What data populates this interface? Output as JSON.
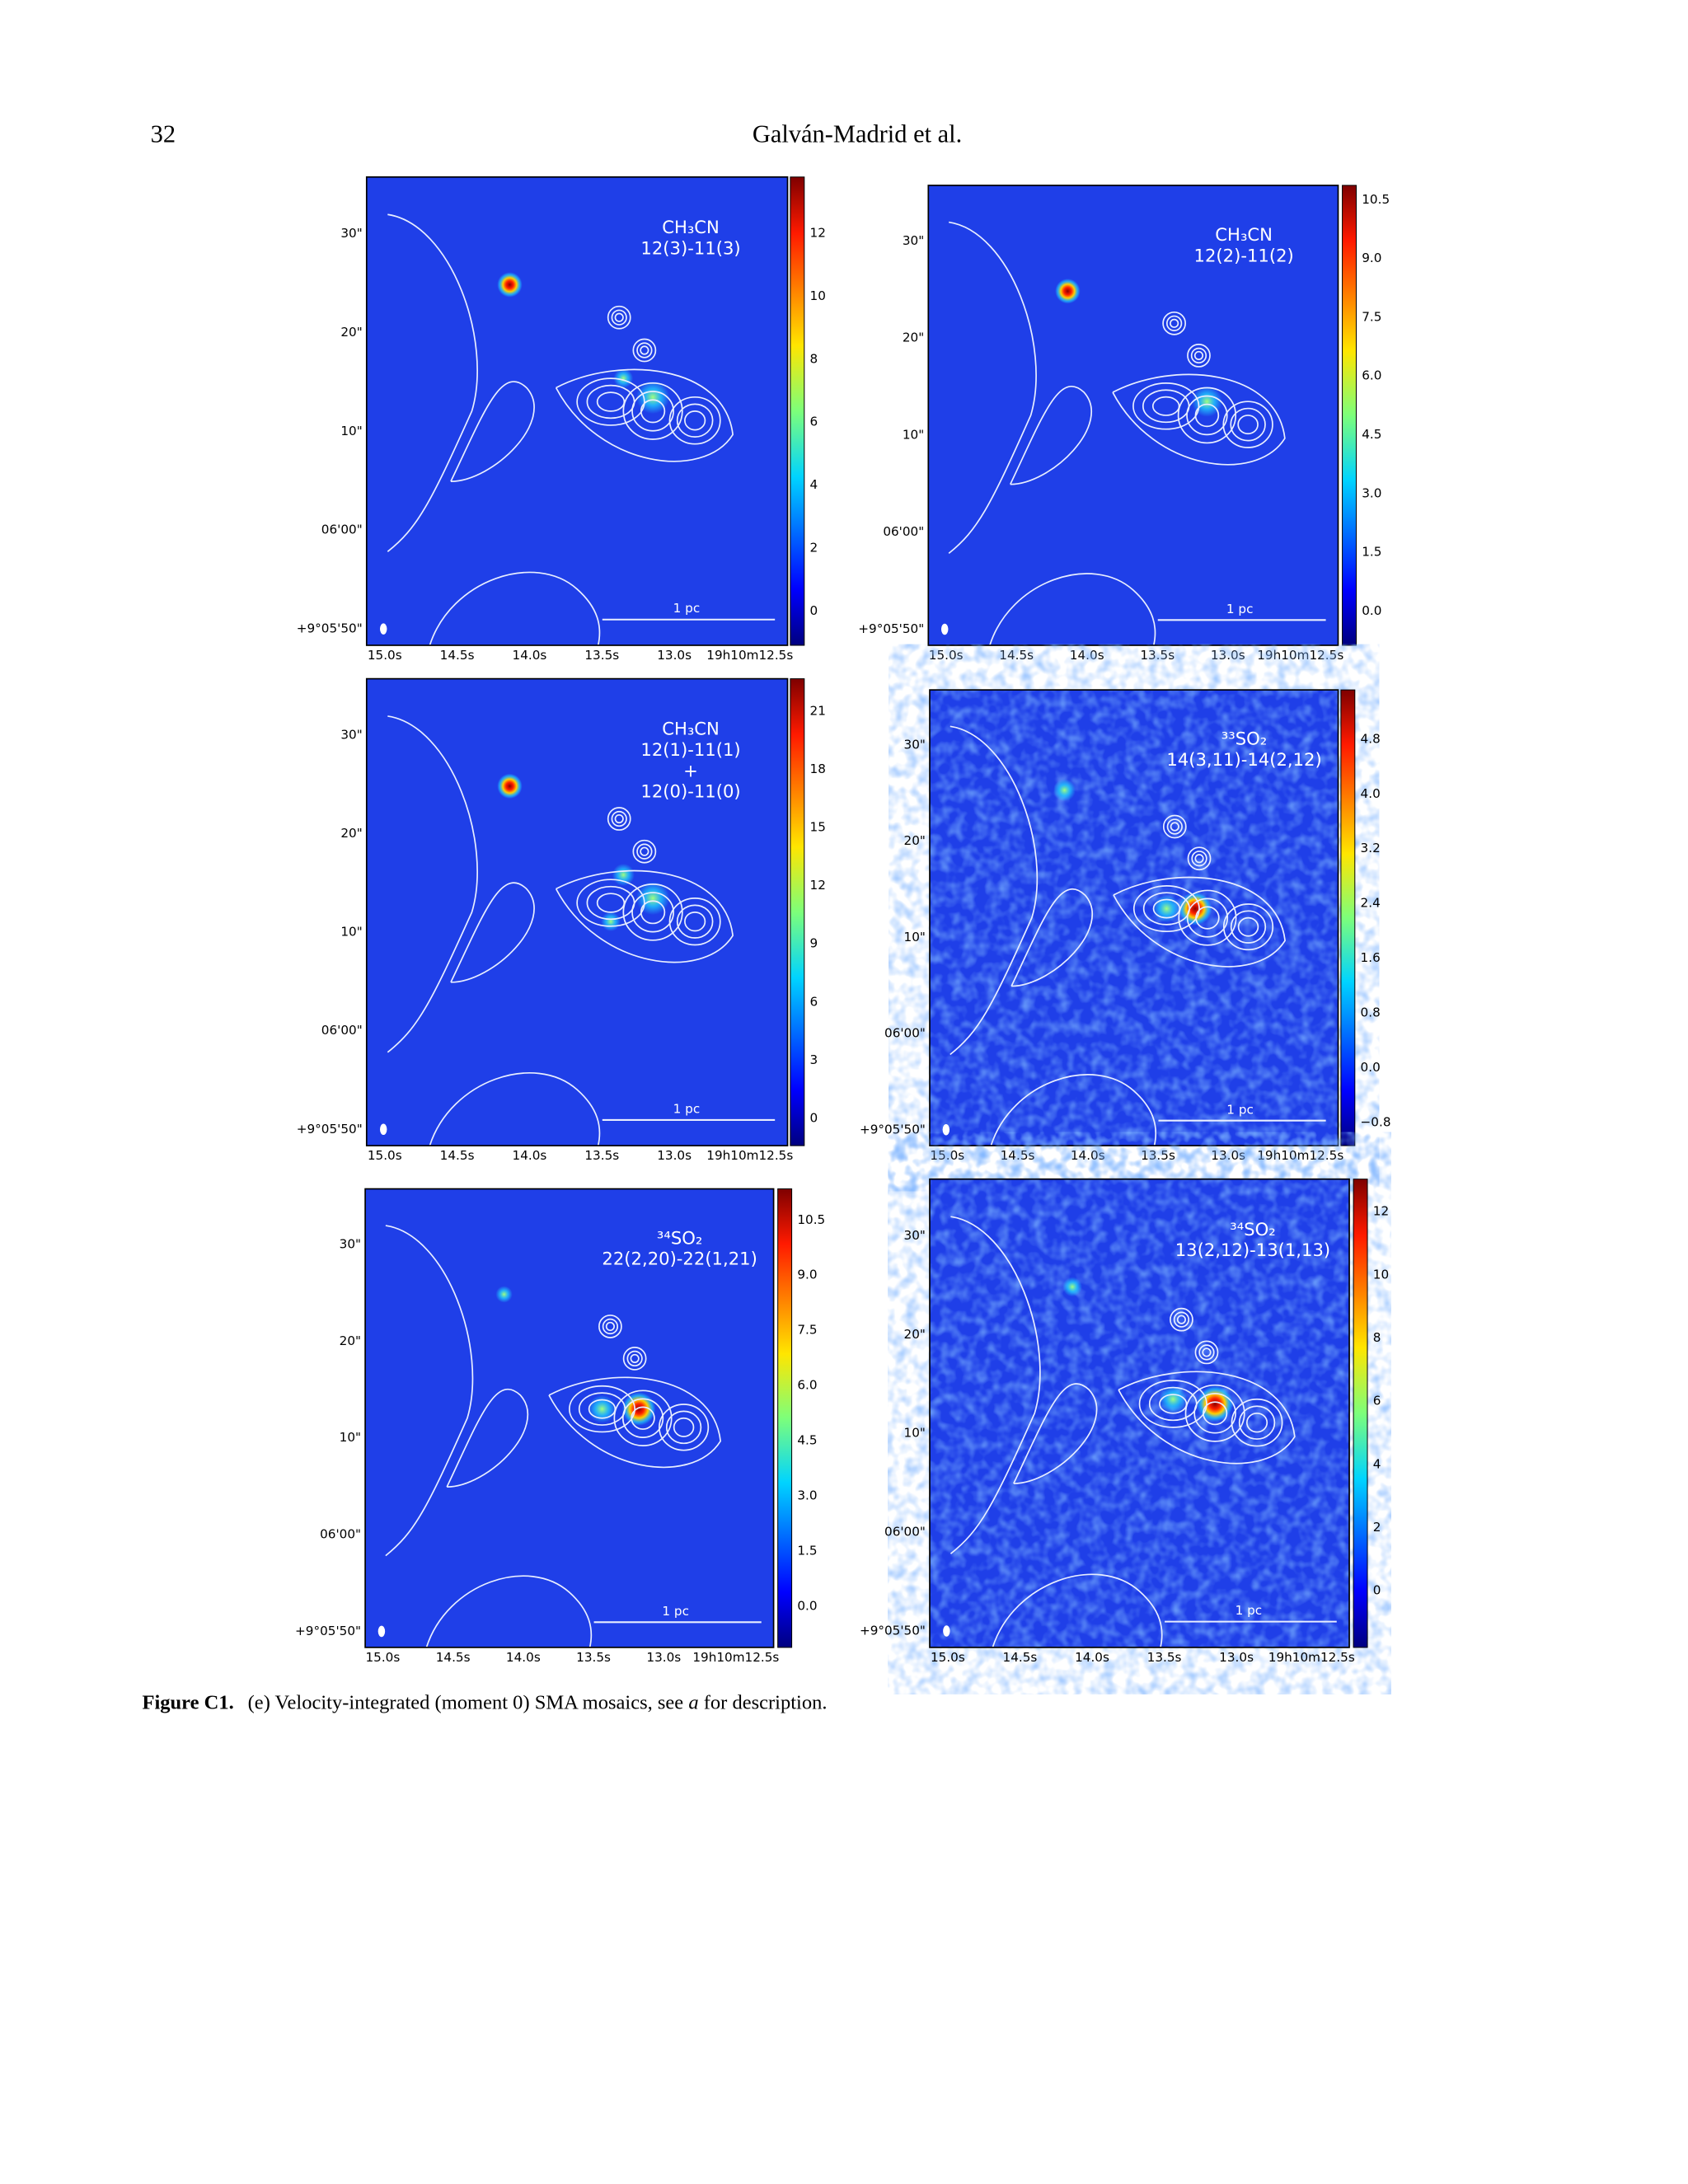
{
  "header": {
    "page_number": "32",
    "running_title": "Galván-Madrid et al."
  },
  "figure": {
    "ra_ticks": [
      "15.0s",
      "14.5s",
      "14.0s",
      "13.5s",
      "13.0s",
      "19h10m12.5s"
    ],
    "dec_ticks": [
      "30\"",
      "20\"",
      "10\"",
      "06'00\"",
      "+9°05'50\""
    ],
    "scale_bar": "1 pc",
    "panels": [
      {
        "label": [
          "CH₃CN",
          "12(3)-11(3)"
        ],
        "colorbar_ticks": [
          "12",
          "10",
          "8",
          "6",
          "4",
          "2",
          "0"
        ]
      },
      {
        "label": [
          "CH₃CN",
          "12(2)-11(2)"
        ],
        "colorbar_ticks": [
          "10.5",
          "9.0",
          "7.5",
          "6.0",
          "4.5",
          "3.0",
          "1.5",
          "0.0"
        ]
      },
      {
        "label": [
          "CH₃CN",
          "12(1)-11(1)",
          "+",
          "12(0)-11(0)"
        ],
        "colorbar_ticks": [
          "21",
          "18",
          "15",
          "12",
          "9",
          "6",
          "3",
          "0"
        ]
      },
      {
        "label": [
          "³³SO₂",
          "14(3,11)-14(2,12)"
        ],
        "colorbar_ticks": [
          "4.8",
          "4.0",
          "3.2",
          "2.4",
          "1.6",
          "0.8",
          "0.0",
          "−0.8"
        ]
      },
      {
        "label": [
          "³⁴SO₂",
          "22(2,20)-22(1,21)"
        ],
        "colorbar_ticks": [
          "10.5",
          "9.0",
          "7.5",
          "6.0",
          "4.5",
          "3.0",
          "1.5",
          "0.0"
        ]
      },
      {
        "label": [
          "³⁴SO₂",
          "13(2,12)-13(1,13)"
        ],
        "colorbar_ticks": [
          "12",
          "10",
          "8",
          "6",
          "4",
          "2",
          "0"
        ]
      }
    ]
  },
  "caption": {
    "label": "Figure C1.",
    "text_before": "(e) Velocity-integrated (moment 0) SMA mosaics, see ",
    "emphasis": "a",
    "text_after": " for description."
  }
}
